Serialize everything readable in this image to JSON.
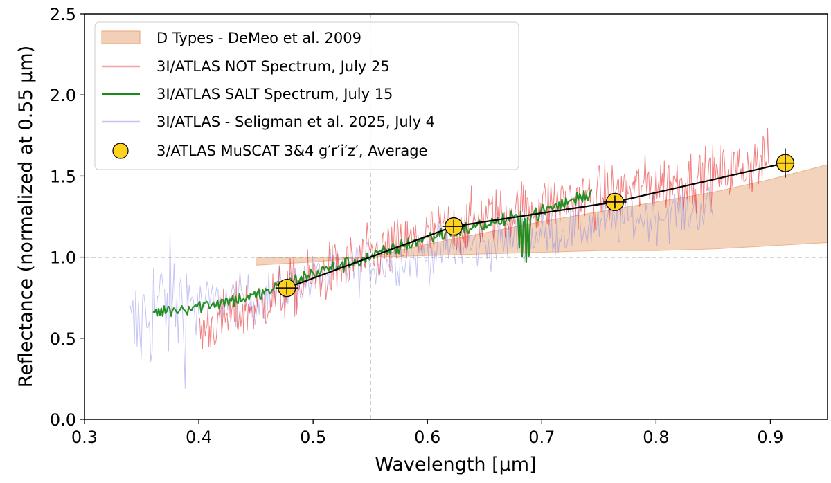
{
  "chart_data": {
    "type": "line",
    "xlabel": "Wavelength [μm]",
    "ylabel": "Reflectance (normalized at 0.55 μm)",
    "xlim": [
      0.3,
      0.95
    ],
    "ylim": [
      0.0,
      2.5
    ],
    "xticks": [
      "0.3",
      "0.4",
      "0.5",
      "0.6",
      "0.7",
      "0.8",
      "0.9"
    ],
    "yticks": [
      "0.0",
      "0.5",
      "1.0",
      "1.5",
      "2.0",
      "2.5"
    ],
    "reference_lines": {
      "x": 0.55,
      "y": 1.0
    },
    "band": {
      "name": "D Types - DeMeo et al. 2009",
      "color": "#e8a77a",
      "x": [
        0.45,
        0.5,
        0.55,
        0.6,
        0.65,
        0.7,
        0.75,
        0.8,
        0.85,
        0.9,
        0.95
      ],
      "lower": [
        0.95,
        0.97,
        1.0,
        1.01,
        1.02,
        1.03,
        1.04,
        1.04,
        1.05,
        1.07,
        1.09
      ],
      "upper": [
        1.0,
        1.0,
        1.0,
        1.08,
        1.15,
        1.22,
        1.28,
        1.34,
        1.4,
        1.48,
        1.57
      ]
    },
    "series": [
      {
        "name": "3I/ATLAS NOT Spectrum, July 25",
        "color": "#e8191b",
        "x": [
          0.4,
          0.45,
          0.5,
          0.55,
          0.6,
          0.65,
          0.7,
          0.75,
          0.8,
          0.85,
          0.9
        ],
        "y": [
          0.55,
          0.7,
          0.87,
          1.0,
          1.13,
          1.24,
          1.32,
          1.38,
          1.45,
          1.5,
          1.6
        ],
        "noise": 0.14
      },
      {
        "name": "3I/ATLAS SALT Spectrum, July 15",
        "color": "#1a8a1a",
        "x": [
          0.36,
          0.4,
          0.45,
          0.5,
          0.55,
          0.6,
          0.65,
          0.7,
          0.745
        ],
        "y": [
          0.66,
          0.7,
          0.76,
          0.9,
          1.0,
          1.12,
          1.2,
          1.28,
          1.4
        ],
        "noise": 0.035
      },
      {
        "name": "3I/ATLAS - Seligman et al. 2025, July 4",
        "color": "#7e7ee8",
        "x": [
          0.34,
          0.36,
          0.4,
          0.45,
          0.5,
          0.55,
          0.6,
          0.65,
          0.7,
          0.75,
          0.8,
          0.85
        ],
        "y": [
          0.5,
          0.7,
          0.72,
          0.74,
          0.86,
          0.96,
          1.02,
          1.08,
          1.14,
          1.2,
          1.26,
          1.3
        ],
        "noise": 0.12
      }
    ],
    "photometry": {
      "name": "3/ATLAS MuSCAT 3&4 g′r′i′z′, Average",
      "color": "#ffd21f",
      "x": [
        0.477,
        0.623,
        0.764,
        0.913
      ],
      "y": [
        0.81,
        1.19,
        1.34,
        1.58
      ],
      "xerr": [
        0.01,
        0.01,
        0.01,
        0.008
      ],
      "yerr": [
        0.04,
        0.04,
        0.04,
        0.09
      ]
    },
    "legend_position": "upper-left"
  }
}
